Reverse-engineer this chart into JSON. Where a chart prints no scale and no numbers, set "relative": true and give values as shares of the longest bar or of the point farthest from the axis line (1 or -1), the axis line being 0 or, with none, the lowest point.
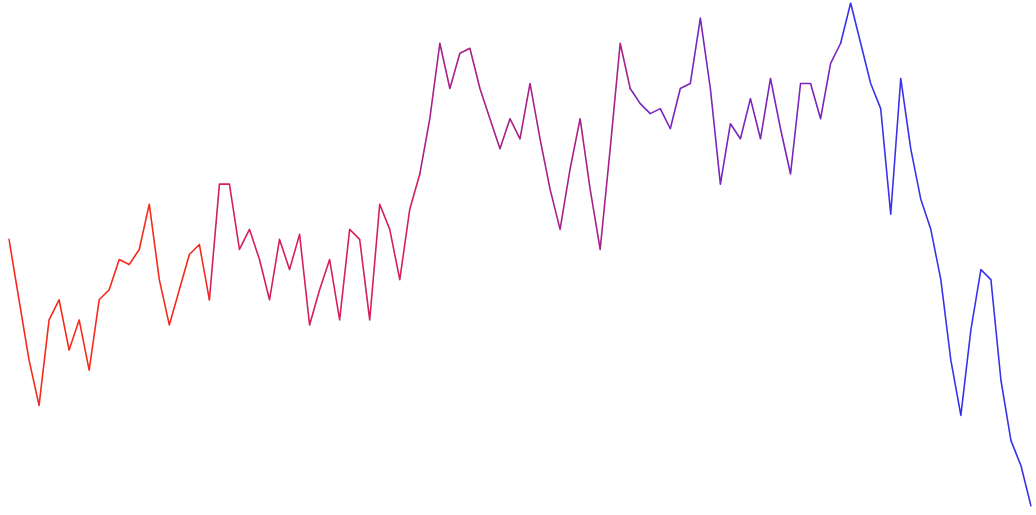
{
  "chart_data": {
    "type": "line",
    "relative": true,
    "marker": "none",
    "line_style": "solid",
    "legend": false,
    "categories": [
      null,
      null,
      null,
      null,
      null,
      null,
      null,
      null,
      null,
      null,
      null,
      null,
      null,
      null,
      null,
      null,
      null,
      null,
      null,
      null,
      null,
      null,
      null,
      null,
      null,
      null,
      null,
      null,
      null,
      null,
      null,
      null,
      null,
      null,
      null,
      null,
      null,
      null,
      null,
      null,
      null,
      null,
      null,
      null,
      null,
      null,
      null,
      null,
      null,
      null,
      null,
      null,
      null,
      null,
      null,
      null,
      null,
      null,
      null,
      null,
      null,
      null,
      null,
      null,
      null,
      null,
      null,
      null,
      null,
      null,
      null,
      null,
      null,
      null,
      null,
      null,
      null,
      null,
      null,
      null,
      null,
      null,
      null,
      null,
      null,
      null,
      null,
      null,
      null,
      null,
      null,
      null,
      null,
      null,
      null,
      null,
      null,
      null,
      null,
      null,
      null,
      null,
      null
    ],
    "series": [
      {
        "color": "#f52a1c",
        "values": [
          0.53,
          0.41,
          0.29,
          0.2,
          0.37,
          0.41,
          0.31,
          0.37,
          0.27,
          0.41,
          0.43,
          0.49,
          0.48,
          0.51,
          0.6,
          0.45,
          0.36,
          0.43,
          0.5,
          0.52,
          0.41,
          null,
          null,
          null,
          null,
          null,
          null,
          null,
          null,
          null,
          null,
          null,
          null,
          null,
          null,
          null,
          null,
          null,
          null,
          null,
          null,
          null,
          null,
          null,
          null,
          null,
          null,
          null,
          null,
          null,
          null,
          null,
          null,
          null,
          null,
          null,
          null,
          null,
          null,
          null,
          null,
          null,
          null,
          null,
          null,
          null,
          null,
          null,
          null,
          null,
          null,
          null,
          null,
          null,
          null,
          null,
          null,
          null,
          null,
          null,
          null,
          null,
          null,
          null,
          null,
          null,
          null,
          null,
          null,
          null,
          null,
          null,
          null,
          null,
          null,
          null,
          null,
          null,
          null,
          null,
          null,
          null,
          null
        ]
      },
      {
        "color": "#d4205a",
        "values": [
          null,
          null,
          null,
          null,
          null,
          null,
          null,
          null,
          null,
          null,
          null,
          null,
          null,
          null,
          null,
          null,
          null,
          null,
          null,
          null,
          0.41,
          0.64,
          0.64,
          0.51,
          0.55,
          0.49,
          0.41,
          0.53,
          0.47,
          0.54,
          0.36,
          0.43,
          0.49,
          0.37,
          0.55,
          0.53,
          0.37,
          0.6,
          0.55,
          0.45,
          0.59,
          0.66,
          null,
          null,
          null,
          null,
          null,
          null,
          null,
          null,
          null,
          null,
          null,
          null,
          null,
          null,
          null,
          null,
          null,
          null,
          null,
          null,
          null,
          null,
          null,
          null,
          null,
          null,
          null,
          null,
          null,
          null,
          null,
          null,
          null,
          null,
          null,
          null,
          null,
          null,
          null,
          null,
          null,
          null,
          null,
          null,
          null,
          null,
          null,
          null,
          null,
          null,
          null,
          null,
          null,
          null,
          null,
          null,
          null,
          null,
          null,
          null,
          null
        ]
      },
      {
        "color": "#a82088",
        "values": [
          null,
          null,
          null,
          null,
          null,
          null,
          null,
          null,
          null,
          null,
          null,
          null,
          null,
          null,
          null,
          null,
          null,
          null,
          null,
          null,
          null,
          null,
          null,
          null,
          null,
          null,
          null,
          null,
          null,
          null,
          null,
          null,
          null,
          null,
          null,
          null,
          null,
          null,
          null,
          null,
          null,
          0.66,
          0.77,
          0.92,
          0.83,
          0.9,
          0.91,
          0.83,
          0.77,
          0.71,
          0.77,
          0.73,
          0.84,
          0.73,
          0.63,
          0.55,
          0.67,
          0.77,
          0.63,
          0.51,
          0.71,
          0.92,
          0.83,
          null,
          null,
          null,
          null,
          null,
          null,
          null,
          null,
          null,
          null,
          null,
          null,
          null,
          null,
          null,
          null,
          null,
          null,
          null,
          null,
          null,
          null,
          null,
          null,
          null,
          null,
          null,
          null,
          null,
          null,
          null,
          null,
          null,
          null,
          null,
          null,
          null,
          null,
          null,
          null
        ]
      },
      {
        "color": "#7a25bc",
        "values": [
          null,
          null,
          null,
          null,
          null,
          null,
          null,
          null,
          null,
          null,
          null,
          null,
          null,
          null,
          null,
          null,
          null,
          null,
          null,
          null,
          null,
          null,
          null,
          null,
          null,
          null,
          null,
          null,
          null,
          null,
          null,
          null,
          null,
          null,
          null,
          null,
          null,
          null,
          null,
          null,
          null,
          null,
          null,
          null,
          null,
          null,
          null,
          null,
          null,
          null,
          null,
          null,
          null,
          null,
          null,
          null,
          null,
          null,
          null,
          null,
          null,
          null,
          0.83,
          0.8,
          0.78,
          0.79,
          0.75,
          0.83,
          0.84,
          0.97,
          0.83,
          0.64,
          0.76,
          0.73,
          0.81,
          0.73,
          0.85,
          0.75,
          0.66,
          0.84,
          0.84,
          0.77,
          0.88,
          0.92,
          null,
          null,
          null,
          null,
          null,
          null,
          null,
          null,
          null,
          null,
          null,
          null,
          null,
          null,
          null,
          null,
          null,
          null,
          null
        ]
      },
      {
        "color": "#3a32ea",
        "values": [
          null,
          null,
          null,
          null,
          null,
          null,
          null,
          null,
          null,
          null,
          null,
          null,
          null,
          null,
          null,
          null,
          null,
          null,
          null,
          null,
          null,
          null,
          null,
          null,
          null,
          null,
          null,
          null,
          null,
          null,
          null,
          null,
          null,
          null,
          null,
          null,
          null,
          null,
          null,
          null,
          null,
          null,
          null,
          null,
          null,
          null,
          null,
          null,
          null,
          null,
          null,
          null,
          null,
          null,
          null,
          null,
          null,
          null,
          null,
          null,
          null,
          null,
          null,
          null,
          null,
          null,
          null,
          null,
          null,
          null,
          null,
          null,
          null,
          null,
          null,
          null,
          null,
          null,
          null,
          null,
          null,
          null,
          null,
          0.92,
          1.0,
          0.92,
          0.84,
          0.79,
          0.58,
          0.85,
          0.71,
          0.61,
          0.55,
          0.45,
          0.29,
          0.18,
          0.35,
          0.47,
          0.45,
          0.25,
          0.13,
          0.08,
          0.0
        ]
      }
    ]
  }
}
